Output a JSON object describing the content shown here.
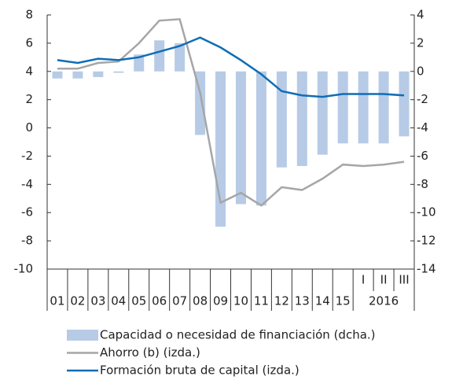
{
  "chart_data": {
    "type": "bar",
    "categories": [
      "01",
      "02",
      "03",
      "04",
      "05",
      "06",
      "07",
      "08",
      "09",
      "10",
      "11",
      "12",
      "13",
      "14",
      "15",
      "I",
      "II",
      "III"
    ],
    "x_group_label": "2016",
    "ylim": [
      -10,
      8
    ],
    "yticks": [
      -10,
      -8,
      -6,
      -4,
      -2,
      0,
      2,
      4,
      6,
      8
    ],
    "y2lim": [
      -14,
      4
    ],
    "y2ticks": [
      -14,
      -12,
      -10,
      -8,
      -6,
      -4,
      -2,
      0,
      2,
      4
    ],
    "series": [
      {
        "name": "Capacidad o necesidad de financiación (dcha.)",
        "type": "bar",
        "axis": "y2",
        "color": "#b7cbe6",
        "values": [
          -0.5,
          -0.5,
          -0.4,
          -0.1,
          1.2,
          2.2,
          2.0,
          -4.5,
          -11.0,
          -9.4,
          -9.5,
          -6.8,
          -6.7,
          -5.9,
          -5.1,
          -5.1,
          -5.1,
          -4.6
        ]
      },
      {
        "name": "Ahorro (b) (izda.)",
        "type": "line",
        "color": "#a6a6a6",
        "values": [
          4.2,
          4.2,
          4.6,
          4.7,
          6.0,
          7.6,
          7.7,
          2.5,
          -5.3,
          -4.6,
          -5.5,
          -4.2,
          -4.4,
          -3.6,
          -2.6,
          -2.7,
          -2.6,
          -2.4
        ]
      },
      {
        "name": "Formación bruta de capital (izda.)",
        "type": "line",
        "color": "#0f6db5",
        "values": [
          4.8,
          4.6,
          4.9,
          4.8,
          5.0,
          5.4,
          5.8,
          6.4,
          5.7,
          4.8,
          3.8,
          2.6,
          2.3,
          2.2,
          2.4,
          2.4,
          2.4,
          2.3
        ]
      }
    ]
  }
}
